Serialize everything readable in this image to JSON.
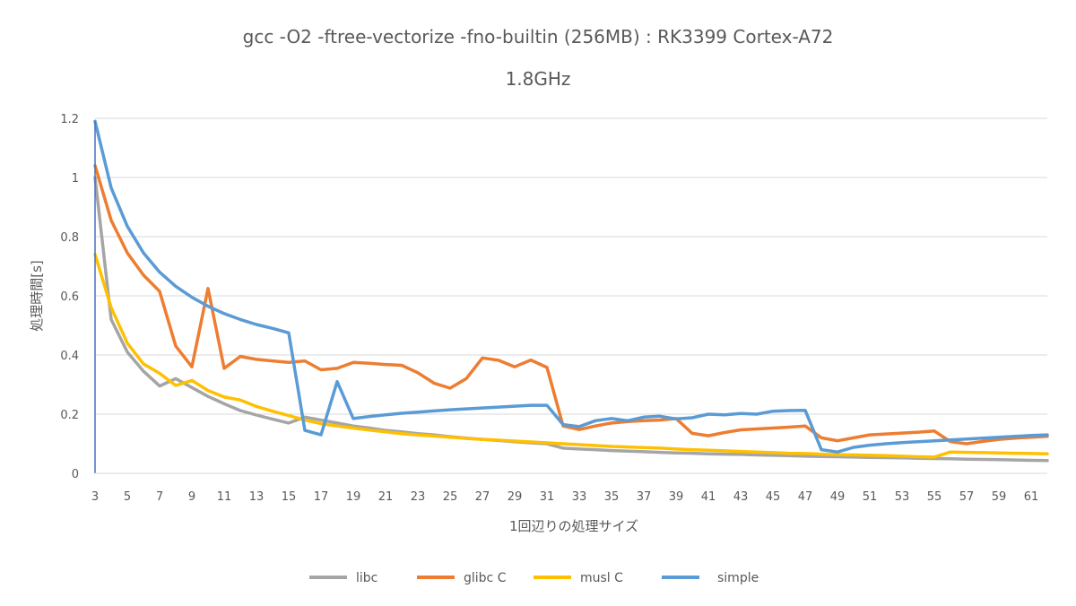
{
  "chart_data": {
    "type": "line",
    "title": "gcc -O2 -ftree-vectorize -fno-builtin (256MB) : RK3399 Cortex-A72",
    "subtitle": "1.8GHz",
    "xlabel": "1回辺りの処理サイズ",
    "ylabel": "処理時間[s]",
    "ylim": [
      0,
      1.2
    ],
    "yticks": [
      "0",
      "0.2",
      "0.4",
      "0.6",
      "0.8",
      "1",
      "1.2"
    ],
    "xtick_labels": [
      "3",
      "5",
      "7",
      "9",
      "11",
      "13",
      "15",
      "17",
      "19",
      "21",
      "23",
      "25",
      "27",
      "29",
      "31",
      "33",
      "35",
      "37",
      "39",
      "41",
      "43",
      "45",
      "47",
      "49",
      "51",
      "53",
      "55",
      "57",
      "59",
      "61"
    ],
    "x": [
      3,
      4,
      5,
      6,
      7,
      8,
      9,
      10,
      11,
      12,
      13,
      14,
      15,
      16,
      17,
      18,
      19,
      20,
      21,
      22,
      23,
      24,
      25,
      26,
      27,
      28,
      29,
      30,
      31,
      32,
      33,
      34,
      35,
      36,
      37,
      38,
      39,
      40,
      41,
      42,
      43,
      44,
      45,
      46,
      47,
      48,
      49,
      50,
      51,
      52,
      53,
      54,
      55,
      56,
      57,
      58,
      59,
      60,
      61,
      62
    ],
    "grid": true,
    "legend_position": "bottom",
    "series": [
      {
        "name": "libc",
        "color": "#a5a5a5",
        "values": [
          1.0,
          0.52,
          0.41,
          0.345,
          0.295,
          0.32,
          0.29,
          0.26,
          0.235,
          0.212,
          0.197,
          0.183,
          0.17,
          0.19,
          0.18,
          0.17,
          0.16,
          0.153,
          0.145,
          0.14,
          0.134,
          0.13,
          0.124,
          0.119,
          0.115,
          0.111,
          0.107,
          0.103,
          0.1,
          0.085,
          0.082,
          0.08,
          0.077,
          0.075,
          0.073,
          0.071,
          0.069,
          0.068,
          0.066,
          0.065,
          0.064,
          0.062,
          0.061,
          0.06,
          0.058,
          0.057,
          0.056,
          0.055,
          0.054,
          0.053,
          0.052,
          0.051,
          0.05,
          0.049,
          0.048,
          0.047,
          0.046,
          0.045,
          0.044,
          0.043
        ]
      },
      {
        "name": "glibc C",
        "color": "#ed7d31",
        "values": [
          1.04,
          0.855,
          0.745,
          0.67,
          0.615,
          0.43,
          0.36,
          0.625,
          0.355,
          0.395,
          0.385,
          0.38,
          0.375,
          0.38,
          0.35,
          0.355,
          0.375,
          0.372,
          0.368,
          0.365,
          0.34,
          0.305,
          0.288,
          0.32,
          0.39,
          0.382,
          0.36,
          0.383,
          0.358,
          0.16,
          0.148,
          0.16,
          0.17,
          0.175,
          0.178,
          0.18,
          0.185,
          0.135,
          0.127,
          0.138,
          0.147,
          0.15,
          0.153,
          0.156,
          0.16,
          0.12,
          0.11,
          0.12,
          0.13,
          0.133,
          0.136,
          0.139,
          0.143,
          0.107,
          0.1,
          0.108,
          0.115,
          0.119,
          0.122,
          0.125
        ]
      },
      {
        "name": "musl C",
        "color": "#ffc000",
        "values": [
          0.74,
          0.56,
          0.44,
          0.37,
          0.338,
          0.297,
          0.314,
          0.28,
          0.258,
          0.248,
          0.226,
          0.21,
          0.195,
          0.18,
          0.168,
          0.16,
          0.153,
          0.146,
          0.14,
          0.134,
          0.13,
          0.126,
          0.122,
          0.118,
          0.115,
          0.112,
          0.109,
          0.106,
          0.103,
          0.1,
          0.097,
          0.094,
          0.091,
          0.089,
          0.087,
          0.085,
          0.082,
          0.08,
          0.078,
          0.076,
          0.074,
          0.072,
          0.07,
          0.068,
          0.067,
          0.065,
          0.063,
          0.062,
          0.061,
          0.06,
          0.058,
          0.056,
          0.055,
          0.072,
          0.071,
          0.07,
          0.069,
          0.068,
          0.067,
          0.066
        ]
      },
      {
        "name": "simple",
        "color": "#5b9bd5",
        "values": [
          1.19,
          0.965,
          0.835,
          0.745,
          0.68,
          0.632,
          0.595,
          0.565,
          0.54,
          0.52,
          0.503,
          0.49,
          0.475,
          0.145,
          0.13,
          0.31,
          0.185,
          0.192,
          0.198,
          0.203,
          0.207,
          0.211,
          0.215,
          0.218,
          0.221,
          0.224,
          0.227,
          0.23,
          0.23,
          0.165,
          0.158,
          0.178,
          0.185,
          0.178,
          0.19,
          0.193,
          0.184,
          0.188,
          0.2,
          0.198,
          0.202,
          0.2,
          0.21,
          0.212,
          0.213,
          0.08,
          0.072,
          0.088,
          0.095,
          0.1,
          0.104,
          0.107,
          0.11,
          0.113,
          0.116,
          0.119,
          0.122,
          0.125,
          0.128,
          0.13
        ]
      }
    ]
  }
}
